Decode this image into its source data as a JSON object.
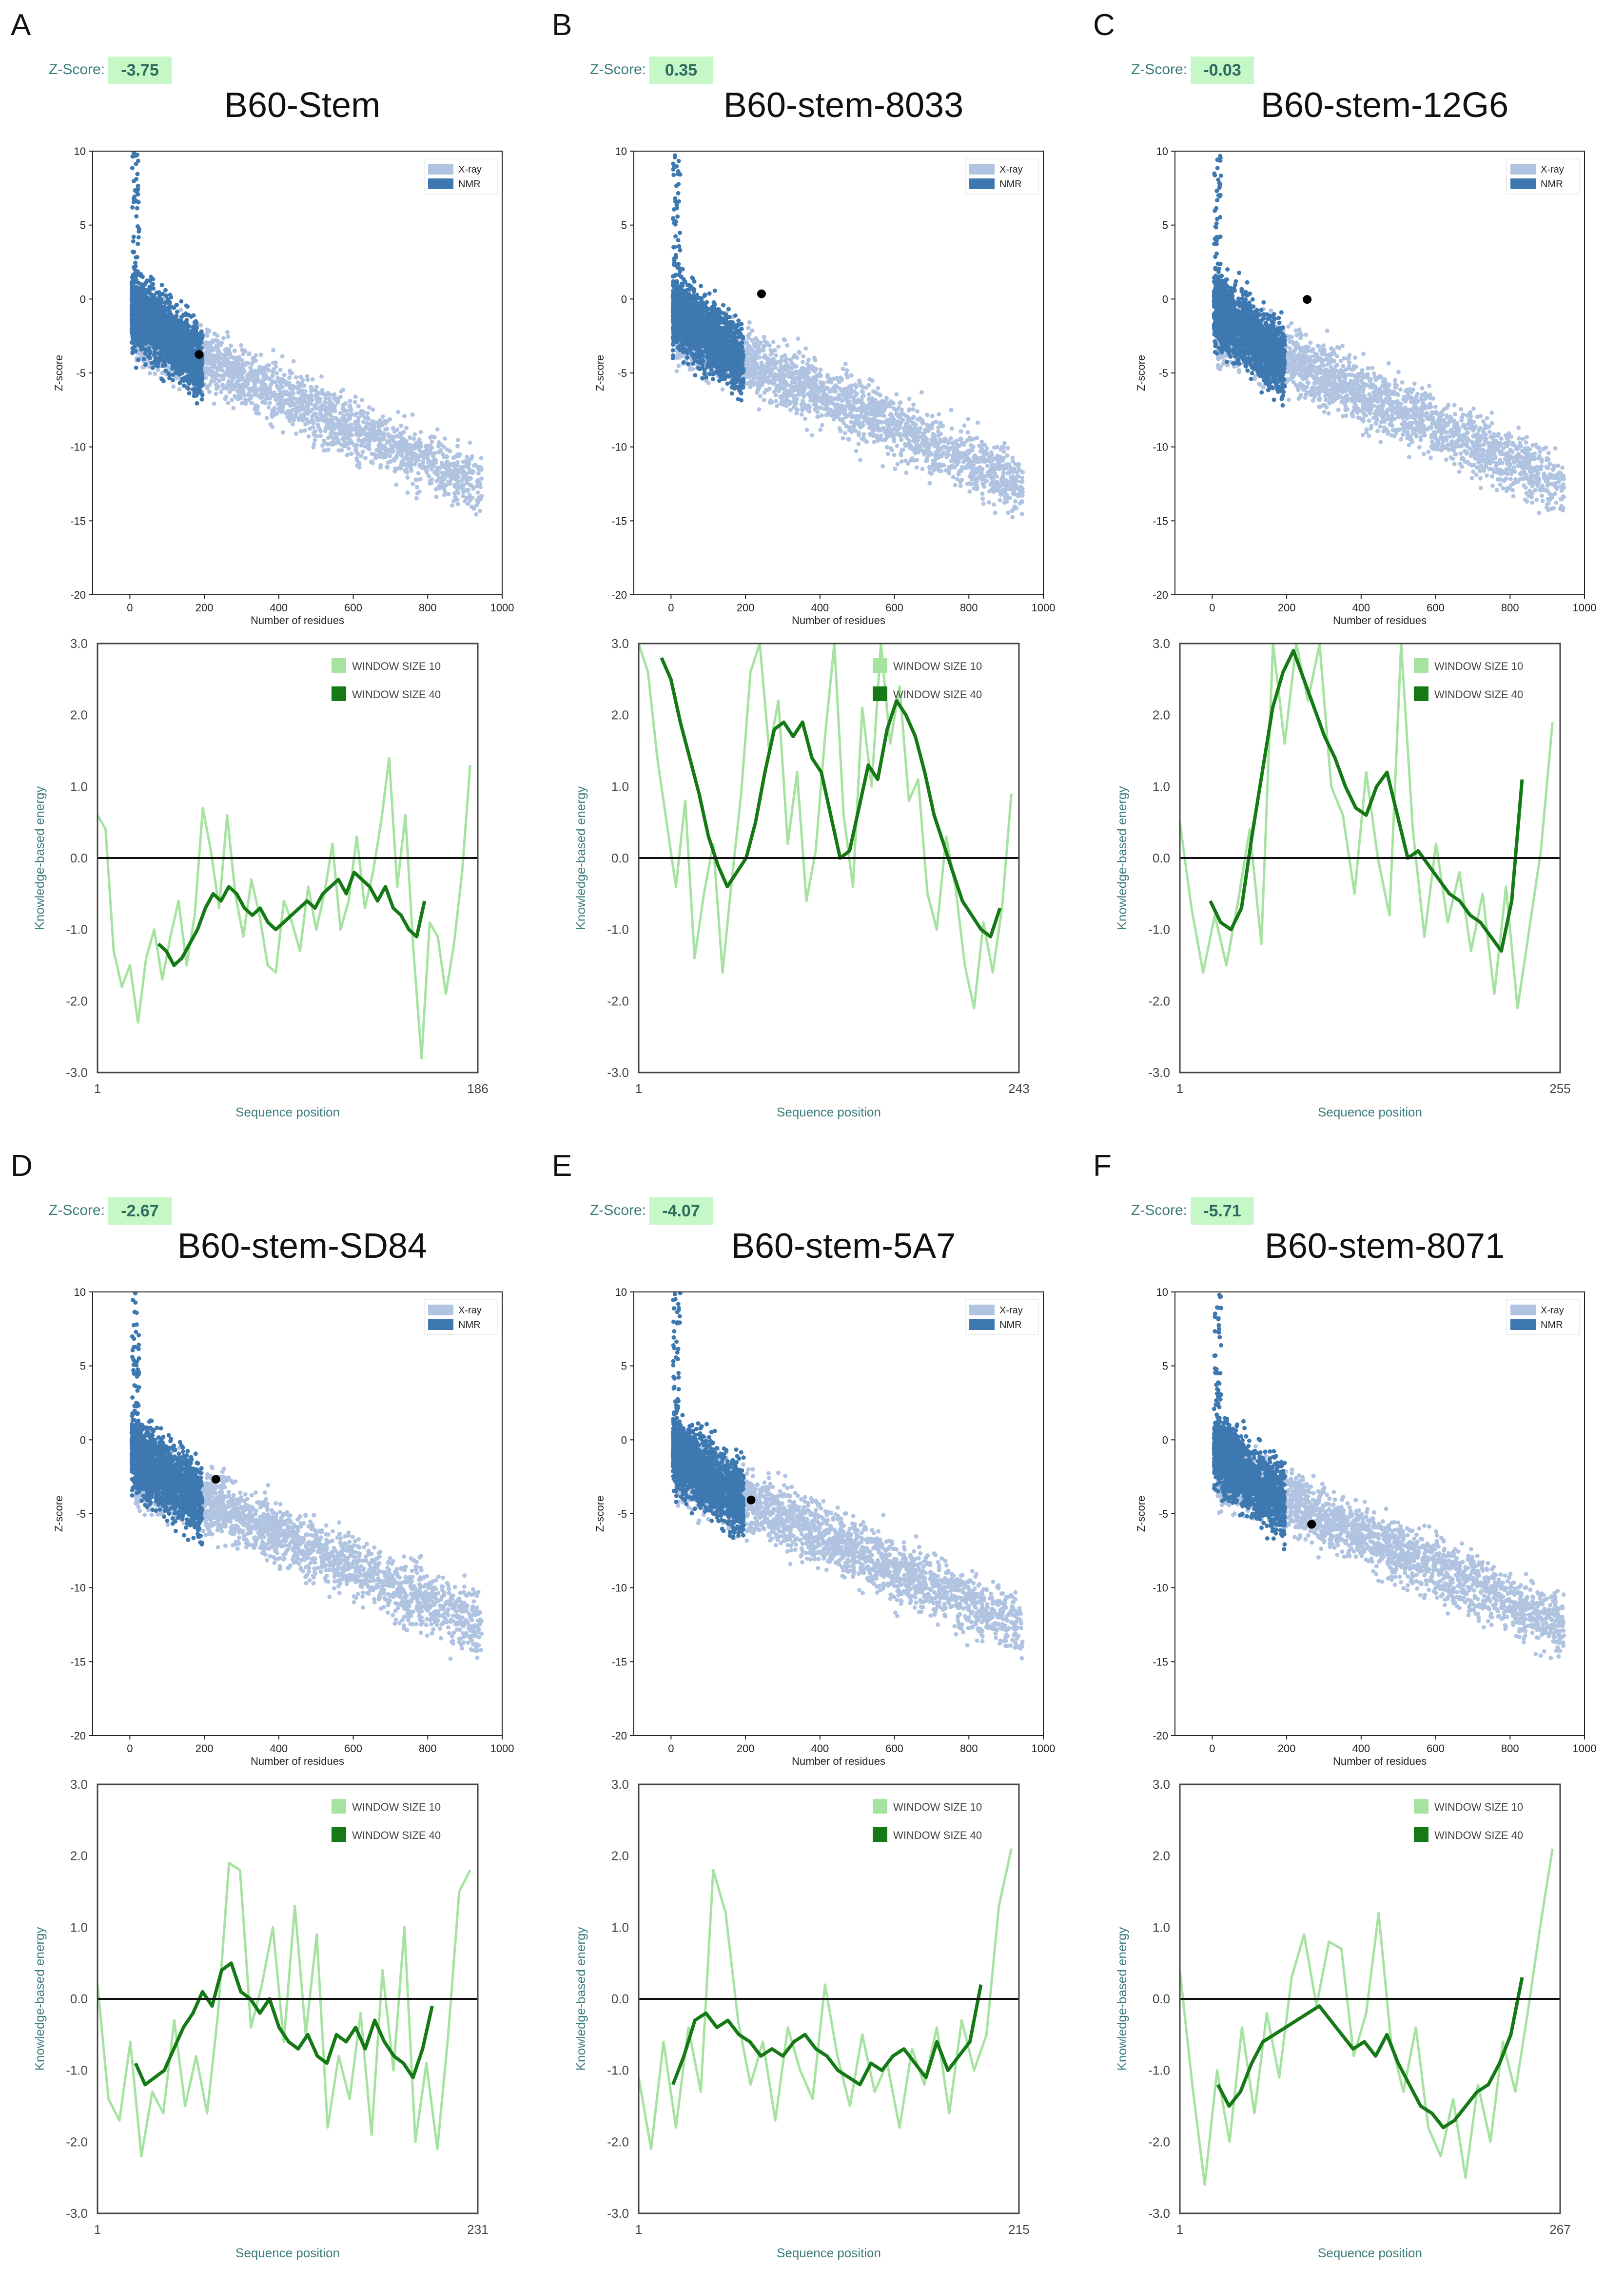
{
  "colors": {
    "xray": "#b0c4e2",
    "nmr": "#3d78b0",
    "w10": "#a6e3a0",
    "w40": "#157a15",
    "badge": "#c6f7c6",
    "label_teal": "#3c7c7c"
  },
  "chart_data": [
    {
      "panel_letter": "A",
      "title": "B60-Stem",
      "zscore_label": "Z-Score:",
      "zscore": -3.75,
      "zscore_text": "-3.75",
      "residues": 186,
      "scatter": {
        "type": "scatter",
        "xlabel": "Number of residues",
        "ylabel": "Z-score",
        "xlim": [
          -100,
          1000
        ],
        "ylim": [
          -20,
          10
        ],
        "xticks": [
          0,
          200,
          400,
          600,
          800,
          1000
        ],
        "yticks": [
          10,
          5,
          0,
          -5,
          -10,
          -15,
          -20
        ],
        "legend": [
          "X-ray",
          "NMR"
        ],
        "highlight": {
          "x": 186,
          "y": -3.75
        }
      },
      "energy": {
        "type": "line",
        "xlabel": "Sequence position",
        "ylabel": "Knowledge-based energy",
        "ylim": [
          -3.0,
          3.0
        ],
        "yticks": [
          "3.0",
          "2.0",
          "1.0",
          "0.0",
          "-1.0",
          "-2.0",
          "-3.0"
        ],
        "x_start_label": "1",
        "x_end_label": "186",
        "legend": [
          "WINDOW SIZE 10",
          "WINDOW SIZE 40"
        ],
        "w10": [
          0.6,
          0.4,
          -1.3,
          -1.8,
          -1.5,
          -2.3,
          -1.4,
          -1.0,
          -1.7,
          -1.1,
          -0.6,
          -1.5,
          -0.8,
          0.7,
          0.1,
          -0.7,
          0.6,
          -0.5,
          -1.1,
          -0.3,
          -0.8,
          -1.5,
          -1.6,
          -0.6,
          -0.9,
          -1.3,
          -0.4,
          -1.0,
          -0.5,
          0.2,
          -1.0,
          -0.6,
          0.3,
          -0.7,
          -0.2,
          0.5,
          1.4,
          -0.4,
          0.6,
          -1.3,
          -2.8,
          -0.9,
          -1.1,
          -1.9,
          -1.2,
          -0.2,
          1.3
        ],
        "w40_start": 0.16,
        "w40_end": 0.86,
        "w40": [
          -1.2,
          -1.3,
          -1.5,
          -1.4,
          -1.2,
          -1.0,
          -0.7,
          -0.5,
          -0.6,
          -0.4,
          -0.5,
          -0.7,
          -0.8,
          -0.7,
          -0.9,
          -1.0,
          -0.9,
          -0.8,
          -0.7,
          -0.6,
          -0.7,
          -0.5,
          -0.4,
          -0.3,
          -0.5,
          -0.2,
          -0.3,
          -0.4,
          -0.6,
          -0.4,
          -0.7,
          -0.8,
          -1.0,
          -1.1,
          -0.6
        ]
      }
    },
    {
      "panel_letter": "B",
      "title": "B60-stem-8033",
      "zscore_label": "Z-Score:",
      "zscore": 0.35,
      "zscore_text": "0.35",
      "residues": 243,
      "scatter": {
        "type": "scatter",
        "xlabel": "Number of residues",
        "ylabel": "Z-score",
        "xlim": [
          -100,
          1000
        ],
        "ylim": [
          -20,
          10
        ],
        "xticks": [
          0,
          200,
          400,
          600,
          800,
          1000
        ],
        "yticks": [
          10,
          5,
          0,
          -5,
          -10,
          -15,
          -20
        ],
        "legend": [
          "X-ray",
          "NMR"
        ],
        "highlight": {
          "x": 243,
          "y": 0.35
        }
      },
      "energy": {
        "type": "line",
        "xlabel": "Sequence position",
        "ylabel": "Knowledge-based energy",
        "ylim": [
          -3.0,
          3.0
        ],
        "yticks": [
          "3.0",
          "2.0",
          "1.0",
          "0.0",
          "-1.0",
          "-2.0",
          "-3.0"
        ],
        "x_start_label": "1",
        "x_end_label": "243",
        "legend": [
          "WINDOW SIZE 10",
          "WINDOW SIZE 40"
        ],
        "w10": [
          3.0,
          2.6,
          1.4,
          0.5,
          -0.4,
          0.8,
          -1.4,
          -0.5,
          0.2,
          -1.6,
          -0.3,
          0.9,
          2.6,
          3.0,
          1.5,
          2.2,
          0.2,
          1.2,
          -0.6,
          0.1,
          1.7,
          3.0,
          0.6,
          -0.4,
          2.1,
          1.0,
          3.0,
          1.6,
          2.4,
          0.8,
          1.1,
          -0.5,
          -1.0,
          0.3,
          -0.4,
          -1.5,
          -2.1,
          -0.9,
          -1.6,
          -0.7,
          0.9
        ],
        "w40_start": 0.06,
        "w40_end": 0.95,
        "w40": [
          2.8,
          2.5,
          1.9,
          1.4,
          0.9,
          0.3,
          -0.1,
          -0.4,
          -0.2,
          0.0,
          0.5,
          1.2,
          1.8,
          1.9,
          1.7,
          1.9,
          1.4,
          1.2,
          0.6,
          0.0,
          0.1,
          0.7,
          1.3,
          1.1,
          1.8,
          2.2,
          2.0,
          1.7,
          1.2,
          0.6,
          0.2,
          -0.2,
          -0.6,
          -0.8,
          -1.0,
          -1.1,
          -0.7
        ]
      }
    },
    {
      "panel_letter": "C",
      "title": "B60-stem-12G6",
      "zscore_label": "Z-Score:",
      "zscore": -0.03,
      "zscore_text": "-0.03",
      "residues": 255,
      "scatter": {
        "type": "scatter",
        "xlabel": "Number of residues",
        "ylabel": "Z-score",
        "xlim": [
          -100,
          1000
        ],
        "ylim": [
          -20,
          10
        ],
        "xticks": [
          0,
          200,
          400,
          600,
          800,
          1000
        ],
        "yticks": [
          10,
          5,
          0,
          -5,
          -10,
          -15,
          -20
        ],
        "legend": [
          "X-ray",
          "NMR"
        ],
        "highlight": {
          "x": 255,
          "y": -0.03
        }
      },
      "energy": {
        "type": "line",
        "xlabel": "Sequence position",
        "ylabel": "Knowledge-based energy",
        "ylim": [
          -3.0,
          3.0
        ],
        "yticks": [
          "3.0",
          "2.0",
          "1.0",
          "0.0",
          "-1.0",
          "-2.0",
          "-3.0"
        ],
        "x_start_label": "1",
        "x_end_label": "255",
        "legend": [
          "WINDOW SIZE 10",
          "WINDOW SIZE 40"
        ],
        "w10": [
          0.5,
          -0.7,
          -1.6,
          -0.8,
          -1.5,
          -0.6,
          0.4,
          -1.2,
          3.0,
          1.6,
          3.0,
          2.2,
          3.0,
          1.0,
          0.6,
          -0.5,
          1.2,
          0.0,
          -0.8,
          3.0,
          0.4,
          -1.1,
          0.2,
          -0.9,
          -0.2,
          -1.3,
          -0.5,
          -1.9,
          -0.4,
          -2.1,
          -1.0,
          0.1,
          1.9
        ],
        "w40_start": 0.08,
        "w40_end": 0.9,
        "w40": [
          -0.6,
          -0.9,
          -1.0,
          -0.7,
          0.3,
          1.2,
          2.1,
          2.6,
          2.9,
          2.5,
          2.1,
          1.7,
          1.4,
          1.0,
          0.7,
          0.6,
          1.0,
          1.2,
          0.6,
          0.0,
          0.1,
          -0.1,
          -0.3,
          -0.5,
          -0.6,
          -0.8,
          -0.9,
          -1.1,
          -1.3,
          -0.6,
          1.1
        ]
      }
    },
    {
      "panel_letter": "D",
      "title": "B60-stem-SD84",
      "zscore_label": "Z-Score:",
      "zscore": -2.67,
      "zscore_text": "-2.67",
      "residues": 231,
      "scatter": {
        "type": "scatter",
        "xlabel": "Number of residues",
        "ylabel": "Z-score",
        "xlim": [
          -100,
          1000
        ],
        "ylim": [
          -20,
          10
        ],
        "xticks": [
          0,
          200,
          400,
          600,
          800,
          1000
        ],
        "yticks": [
          10,
          5,
          0,
          -5,
          -10,
          -15,
          -20
        ],
        "legend": [
          "X-ray",
          "NMR"
        ],
        "highlight": {
          "x": 231,
          "y": -2.67
        }
      },
      "energy": {
        "type": "line",
        "xlabel": "Sequence position",
        "ylabel": "Knowledge-based energy",
        "ylim": [
          -3.0,
          3.0
        ],
        "yticks": [
          "3.0",
          "2.0",
          "1.0",
          "0.0",
          "-1.0",
          "-2.0",
          "-3.0"
        ],
        "x_start_label": "1",
        "x_end_label": "231",
        "legend": [
          "WINDOW SIZE 10",
          "WINDOW SIZE 40"
        ],
        "w10": [
          0.2,
          -1.4,
          -1.7,
          -0.6,
          -2.2,
          -1.3,
          -1.6,
          -0.3,
          -1.5,
          -0.8,
          -1.6,
          -0.2,
          1.9,
          1.8,
          -0.4,
          0.2,
          1.0,
          -0.6,
          1.3,
          -0.5,
          0.9,
          -1.8,
          -0.8,
          -1.4,
          -0.2,
          -1.9,
          0.4,
          -1.0,
          1.0,
          -2.0,
          -0.9,
          -2.1,
          -0.5,
          1.5,
          1.8
        ],
        "w40_start": 0.1,
        "w40_end": 0.88,
        "w40": [
          -0.9,
          -1.2,
          -1.1,
          -1.0,
          -0.7,
          -0.4,
          -0.2,
          0.1,
          -0.1,
          0.4,
          0.5,
          0.1,
          0.0,
          -0.2,
          0.0,
          -0.4,
          -0.6,
          -0.7,
          -0.5,
          -0.8,
          -0.9,
          -0.5,
          -0.6,
          -0.4,
          -0.7,
          -0.3,
          -0.6,
          -0.8,
          -0.9,
          -1.1,
          -0.7,
          -0.1
        ]
      }
    },
    {
      "panel_letter": "E",
      "title": "B60-stem-5A7",
      "zscore_label": "Z-Score:",
      "zscore": -4.07,
      "zscore_text": "-4.07",
      "residues": 215,
      "scatter": {
        "type": "scatter",
        "xlabel": "Number of residues",
        "ylabel": "Z-score",
        "xlim": [
          -100,
          1000
        ],
        "ylim": [
          -20,
          10
        ],
        "xticks": [
          0,
          200,
          400,
          600,
          800,
          1000
        ],
        "yticks": [
          10,
          5,
          0,
          -5,
          -10,
          -15,
          -20
        ],
        "legend": [
          "X-ray",
          "NMR"
        ],
        "highlight": {
          "x": 215,
          "y": -4.07
        }
      },
      "energy": {
        "type": "line",
        "xlabel": "Sequence position",
        "ylabel": "Knowledge-based energy",
        "ylim": [
          -3.0,
          3.0
        ],
        "yticks": [
          "3.0",
          "2.0",
          "1.0",
          "0.0",
          "-1.0",
          "-2.0",
          "-3.0"
        ],
        "x_start_label": "1",
        "x_end_label": "215",
        "legend": [
          "WINDOW SIZE 10",
          "WINDOW SIZE 40"
        ],
        "w10": [
          -1.1,
          -2.1,
          -0.6,
          -1.8,
          -0.4,
          -1.3,
          1.8,
          1.2,
          -0.3,
          -1.2,
          -0.6,
          -1.7,
          -0.4,
          -1.0,
          -1.4,
          0.2,
          -0.8,
          -1.5,
          -0.5,
          -1.3,
          -0.9,
          -1.8,
          -0.7,
          -1.2,
          -0.4,
          -1.6,
          -0.3,
          -1.0,
          -0.5,
          1.3,
          2.1
        ],
        "w40_start": 0.09,
        "w40_end": 0.9,
        "w40": [
          -1.2,
          -0.8,
          -0.3,
          -0.2,
          -0.4,
          -0.3,
          -0.5,
          -0.6,
          -0.8,
          -0.7,
          -0.8,
          -0.6,
          -0.5,
          -0.7,
          -0.8,
          -1.0,
          -1.1,
          -1.2,
          -0.9,
          -1.0,
          -0.8,
          -0.7,
          -0.9,
          -1.1,
          -0.6,
          -1.0,
          -0.8,
          -0.6,
          0.2
        ]
      }
    },
    {
      "panel_letter": "F",
      "title": "B60-stem-8071",
      "zscore_label": "Z-Score:",
      "zscore": -5.71,
      "zscore_text": "-5.71",
      "residues": 267,
      "scatter": {
        "type": "scatter",
        "xlabel": "Number of residues",
        "ylabel": "Z-score",
        "xlim": [
          -100,
          1000
        ],
        "ylim": [
          -20,
          10
        ],
        "xticks": [
          0,
          200,
          400,
          600,
          800,
          1000
        ],
        "yticks": [
          10,
          5,
          0,
          -5,
          -10,
          -15,
          -20
        ],
        "legend": [
          "X-ray",
          "NMR"
        ],
        "highlight": {
          "x": 267,
          "y": -5.71
        }
      },
      "energy": {
        "type": "line",
        "xlabel": "Sequence position",
        "ylabel": "Knowledge-based energy",
        "ylim": [
          -3.0,
          3.0
        ],
        "yticks": [
          "3.0",
          "2.0",
          "1.0",
          "0.0",
          "-1.0",
          "-2.0",
          "-3.0"
        ],
        "x_start_label": "1",
        "x_end_label": "267",
        "legend": [
          "WINDOW SIZE 10",
          "WINDOW SIZE 40"
        ],
        "w10": [
          0.4,
          -1.2,
          -2.6,
          -1.0,
          -2.0,
          -0.4,
          -1.6,
          -0.2,
          -1.1,
          0.3,
          0.9,
          -0.1,
          0.8,
          0.7,
          -0.8,
          -0.2,
          1.2,
          -0.6,
          -1.3,
          -0.4,
          -1.8,
          -2.2,
          -1.4,
          -2.5,
          -1.2,
          -2.0,
          -0.6,
          -1.3,
          -0.2,
          1.0,
          2.1
        ],
        "w40_start": 0.1,
        "w40_end": 0.9,
        "w40": [
          -1.2,
          -1.5,
          -1.3,
          -0.9,
          -0.6,
          -0.5,
          -0.4,
          -0.3,
          -0.2,
          -0.1,
          -0.3,
          -0.5,
          -0.7,
          -0.6,
          -0.8,
          -0.5,
          -0.9,
          -1.2,
          -1.5,
          -1.6,
          -1.8,
          -1.7,
          -1.5,
          -1.3,
          -1.2,
          -0.9,
          -0.5,
          0.3
        ]
      }
    }
  ]
}
